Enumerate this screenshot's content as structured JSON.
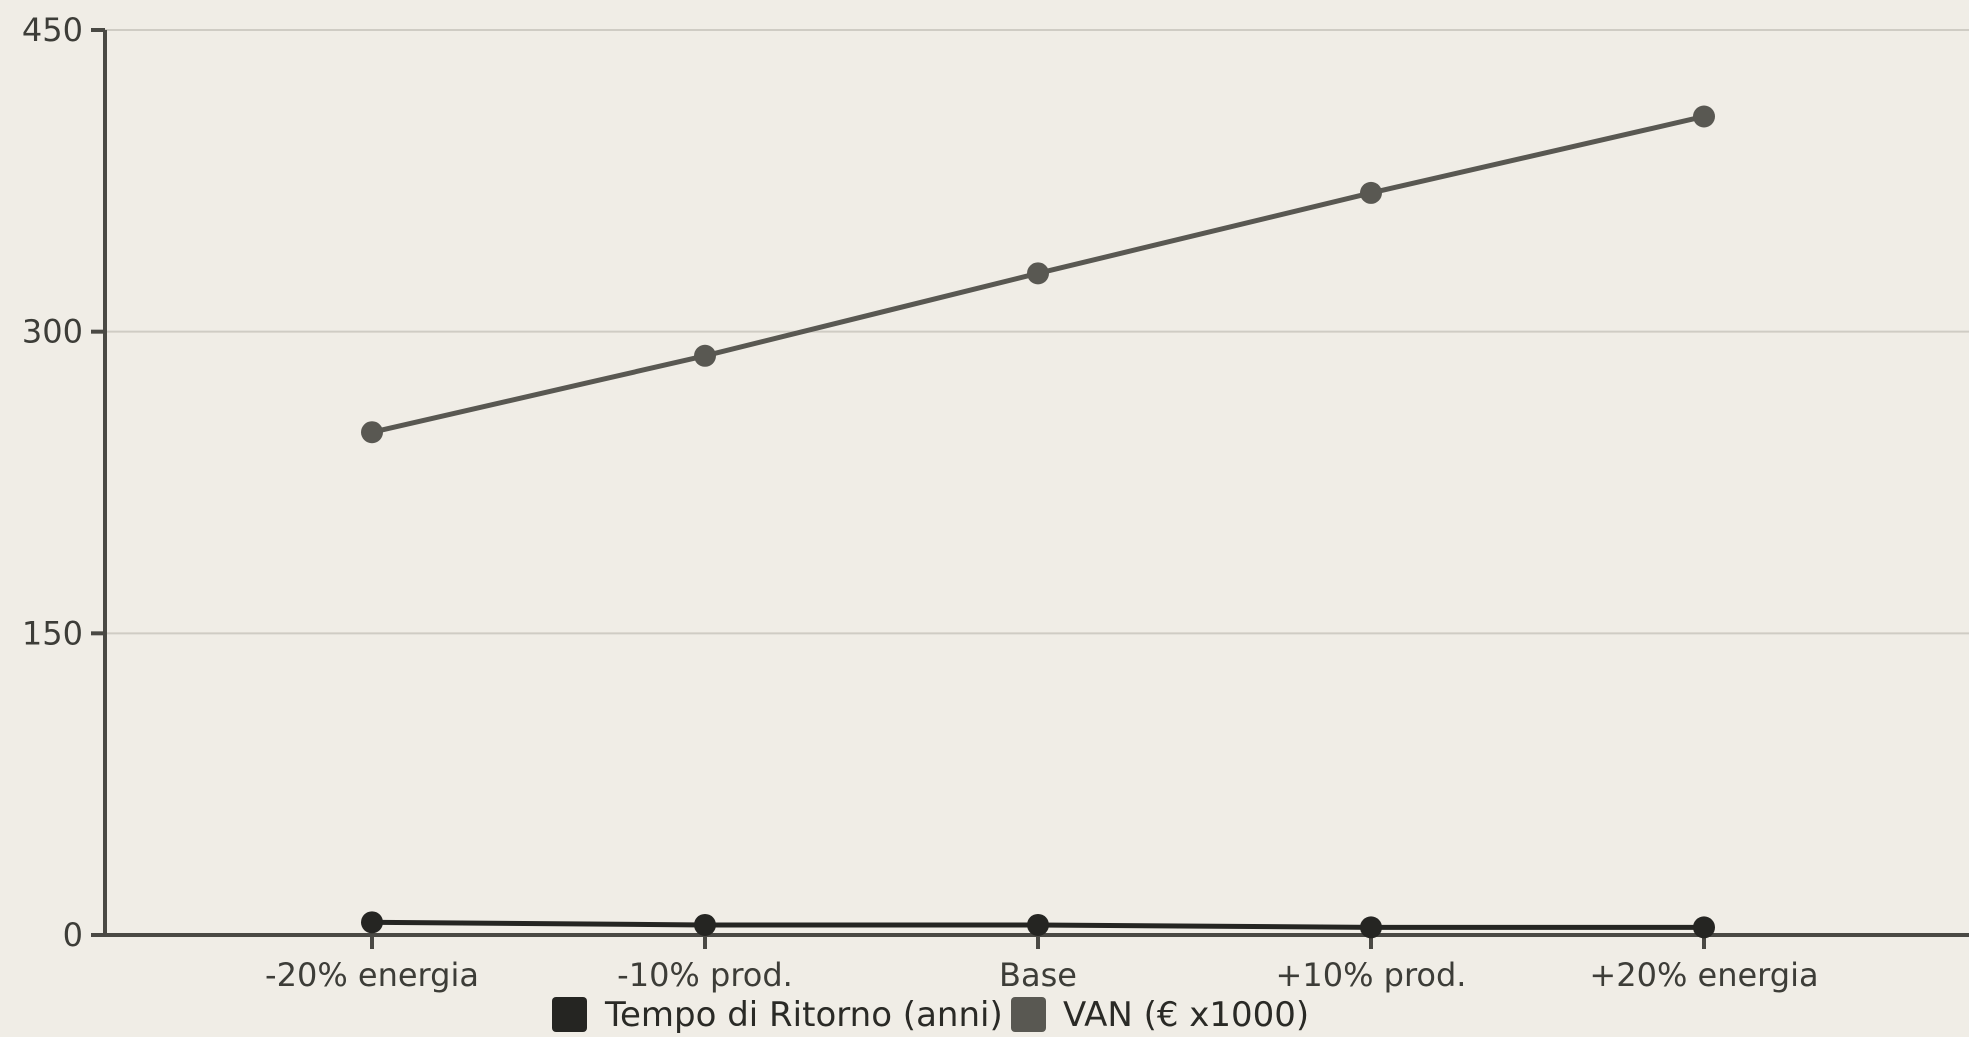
{
  "chart_data": {
    "type": "line",
    "title": "",
    "xlabel": "",
    "ylabel": "",
    "categories": [
      "-20% energia",
      "-10% prod.",
      "Base",
      "+10% prod.",
      "+20% energia"
    ],
    "series": [
      {
        "name": "Tempo di Ritorno (anni)",
        "values": [
          6.3,
          5.0,
          5.0,
          3.8,
          3.8
        ],
        "color": "#252522"
      },
      {
        "name": "VAN (€ x1000)",
        "values": [
          250,
          288,
          329,
          369,
          407
        ],
        "color": "#595852"
      }
    ],
    "ylim": [
      0,
      450
    ],
    "yticks": [
      0,
      150,
      300,
      450
    ],
    "yticklabels": [
      "0",
      "150",
      "300",
      "450"
    ],
    "grid": true,
    "legend": "bottom-center",
    "colors": {
      "background": "#f0ede6",
      "axis": "#4a4944",
      "grid": "#cfccc4"
    }
  }
}
